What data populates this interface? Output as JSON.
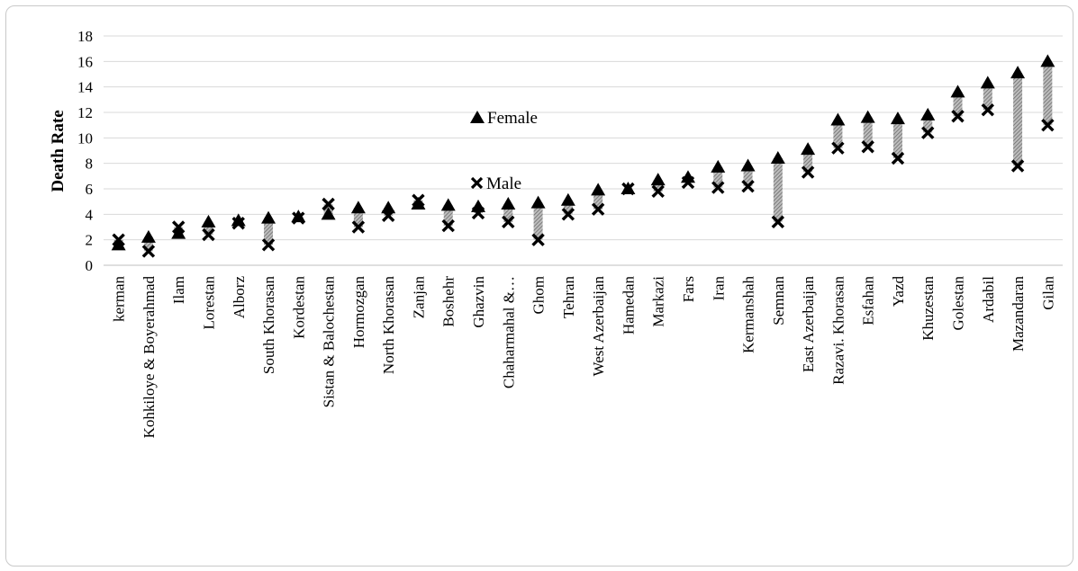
{
  "chart_data": {
    "type": "scatter",
    "ylabel": "Death Rate",
    "xlabel": "",
    "ylim": [
      0,
      18
    ],
    "yticks": [
      "0",
      "2",
      "4",
      "6",
      "8",
      "10",
      "12",
      "14",
      "16",
      "18"
    ],
    "grid": "horizontal",
    "categories": [
      "kerman",
      "Kohkiloye & Boyerahmad",
      "Ilam",
      "Lorestan",
      "Alborz",
      "South Khorasan",
      "Kordestan",
      "Sistan & Balochestan",
      "Hormozgan",
      "North Khorasan",
      "Zanjan",
      "Boshehr",
      "Ghazvin",
      "Chaharmahal &…",
      "Ghom",
      "Tehran",
      "West Azerbaijan",
      "Hamedan",
      "Markazi",
      "Fars",
      "Iran",
      "Kermanshah",
      "Semnan",
      "East Azerbaijan",
      "Razavi. Khorasan",
      "Esfahan",
      "Yazd",
      "Khuzestan",
      "Golestan",
      "Ardabil",
      "Mazandaran",
      "Gilan"
    ],
    "series": [
      {
        "name": "Female",
        "marker": "triangle",
        "values": [
          1.6,
          2.2,
          2.5,
          3.4,
          3.5,
          3.7,
          3.8,
          4.0,
          4.5,
          4.5,
          4.8,
          4.7,
          4.6,
          4.8,
          4.9,
          5.1,
          5.9,
          6.0,
          6.7,
          6.9,
          7.7,
          7.8,
          8.4,
          9.1,
          11.4,
          11.6,
          11.5,
          11.8,
          13.6,
          14.3,
          15.1,
          16.0
        ]
      },
      {
        "name": "Male",
        "marker": "x",
        "values": [
          2.0,
          1.1,
          3.0,
          2.4,
          3.3,
          1.6,
          3.7,
          4.8,
          3.0,
          3.9,
          5.1,
          3.1,
          4.1,
          3.4,
          2.0,
          4.0,
          4.4,
          6.0,
          5.8,
          6.5,
          6.1,
          6.2,
          3.4,
          7.3,
          9.2,
          9.3,
          8.4,
          10.4,
          11.7,
          12.2,
          7.8,
          11.0
        ]
      }
    ],
    "legend": {
      "placement": "inside-center"
    }
  }
}
